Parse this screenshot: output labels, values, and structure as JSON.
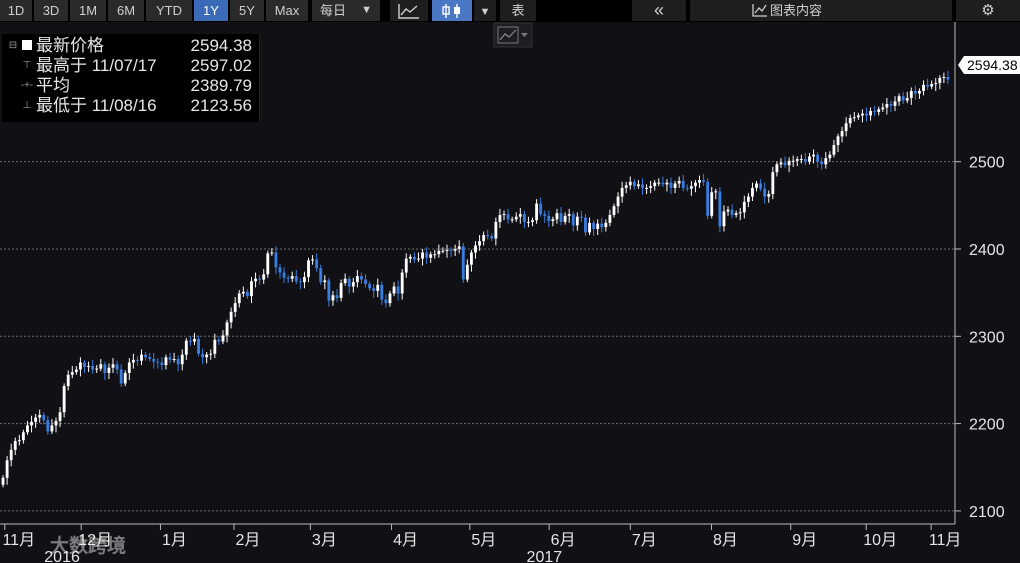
{
  "toolbar": {
    "ranges": [
      "1D",
      "3D",
      "1M",
      "6M",
      "YTD",
      "1Y",
      "5Y",
      "Max"
    ],
    "active_range": "1Y",
    "frequency": "每日",
    "frequency_arrow": "▼",
    "style_arrow": "▼",
    "table_label": "表",
    "collapse_glyph": "«",
    "chart_content_label": "图表内容",
    "icons": [
      "line-chart-icon",
      "candlestick-icon",
      "chevron-down-icon",
      "double-chevron-left-icon",
      "chart-content-icon",
      "gear-icon"
    ]
  },
  "legend": {
    "last": {
      "label": "最新价格",
      "value": "2594.38"
    },
    "high": {
      "label": "最高于 11/07/17",
      "value": "2597.02"
    },
    "avg": {
      "label": "平均",
      "value": "2389.79"
    },
    "low": {
      "label": "最低于 11/08/16",
      "value": "2123.56"
    }
  },
  "last_price_tag": "2594.38",
  "watermark": "大数跨境",
  "colors": {
    "background": "#101015",
    "grid": "#6e6e6e",
    "up": "#ffffff",
    "down": "#3a7de0",
    "active_tab": "#3a6ab8"
  },
  "chart_data": {
    "type": "candlestick",
    "xlabel": "",
    "ylabel": "",
    "ylim": [
      2085,
      2660
    ],
    "y_ticks": [
      2100,
      2200,
      2300,
      2400,
      2500
    ],
    "month_ticks": [
      "11月",
      "12月",
      "1月",
      "2月",
      "3月",
      "4月",
      "5月",
      "6月",
      "7月",
      "8月",
      "9月",
      "10月",
      "11月"
    ],
    "year_labels": [
      "2016",
      "2017"
    ],
    "grid": true,
    "closes": [
      2138,
      2158,
      2170,
      2180,
      2181,
      2190,
      2198,
      2202,
      2207,
      2210,
      2204,
      2191,
      2198,
      2203,
      2213,
      2243,
      2256,
      2259,
      2262,
      2270,
      2265,
      2266,
      2262,
      2263,
      2268,
      2258,
      2264,
      2268,
      2262,
      2246,
      2258,
      2270,
      2273,
      2272,
      2279,
      2276,
      2274,
      2271,
      2270,
      2267,
      2276,
      2273,
      2274,
      2268,
      2279,
      2295,
      2294,
      2297,
      2280,
      2276,
      2279,
      2280,
      2296,
      2294,
      2301,
      2316,
      2328,
      2338,
      2349,
      2351,
      2346,
      2363,
      2366,
      2365,
      2371,
      2395,
      2396,
      2379,
      2373,
      2367,
      2366,
      2369,
      2363,
      2362,
      2368,
      2387,
      2388,
      2378,
      2362,
      2364,
      2341,
      2347,
      2344,
      2361,
      2366,
      2357,
      2362,
      2369,
      2365,
      2360,
      2355,
      2352,
      2359,
      2342,
      2338,
      2349,
      2357,
      2349,
      2373,
      2389,
      2391,
      2388,
      2389,
      2396,
      2390,
      2394,
      2394,
      2398,
      2398,
      2399,
      2398,
      2400,
      2403,
      2365,
      2382,
      2396,
      2404,
      2409,
      2416,
      2415,
      2412,
      2431,
      2439,
      2440,
      2434,
      2434,
      2437,
      2440,
      2431,
      2431,
      2433,
      2452,
      2440,
      2438,
      2432,
      2434,
      2441,
      2431,
      2438,
      2440,
      2427,
      2437,
      2436,
      2419,
      2430,
      2423,
      2429,
      2425,
      2430,
      2439,
      2449,
      2460,
      2470,
      2473,
      2477,
      2472,
      2474,
      2470,
      2470,
      2472,
      2476,
      2476,
      2474,
      2476,
      2470,
      2475,
      2478,
      2470,
      2469,
      2472,
      2476,
      2479,
      2477,
      2438,
      2465,
      2466,
      2426,
      2443,
      2445,
      2439,
      2441,
      2442,
      2454,
      2460,
      2470,
      2475,
      2469,
      2460,
      2463,
      2488,
      2497,
      2499,
      2496,
      2501,
      2501,
      2503,
      2503,
      2500,
      2506,
      2508,
      2500,
      2497,
      2504,
      2508,
      2519,
      2529,
      2535,
      2544,
      2550,
      2551,
      2553,
      2555,
      2553,
      2558,
      2557,
      2560,
      2562,
      2566,
      2564,
      2569,
      2575,
      2570,
      2573,
      2581,
      2578,
      2581,
      2588,
      2586,
      2589,
      2590,
      2596,
      2597,
      2594
    ]
  }
}
